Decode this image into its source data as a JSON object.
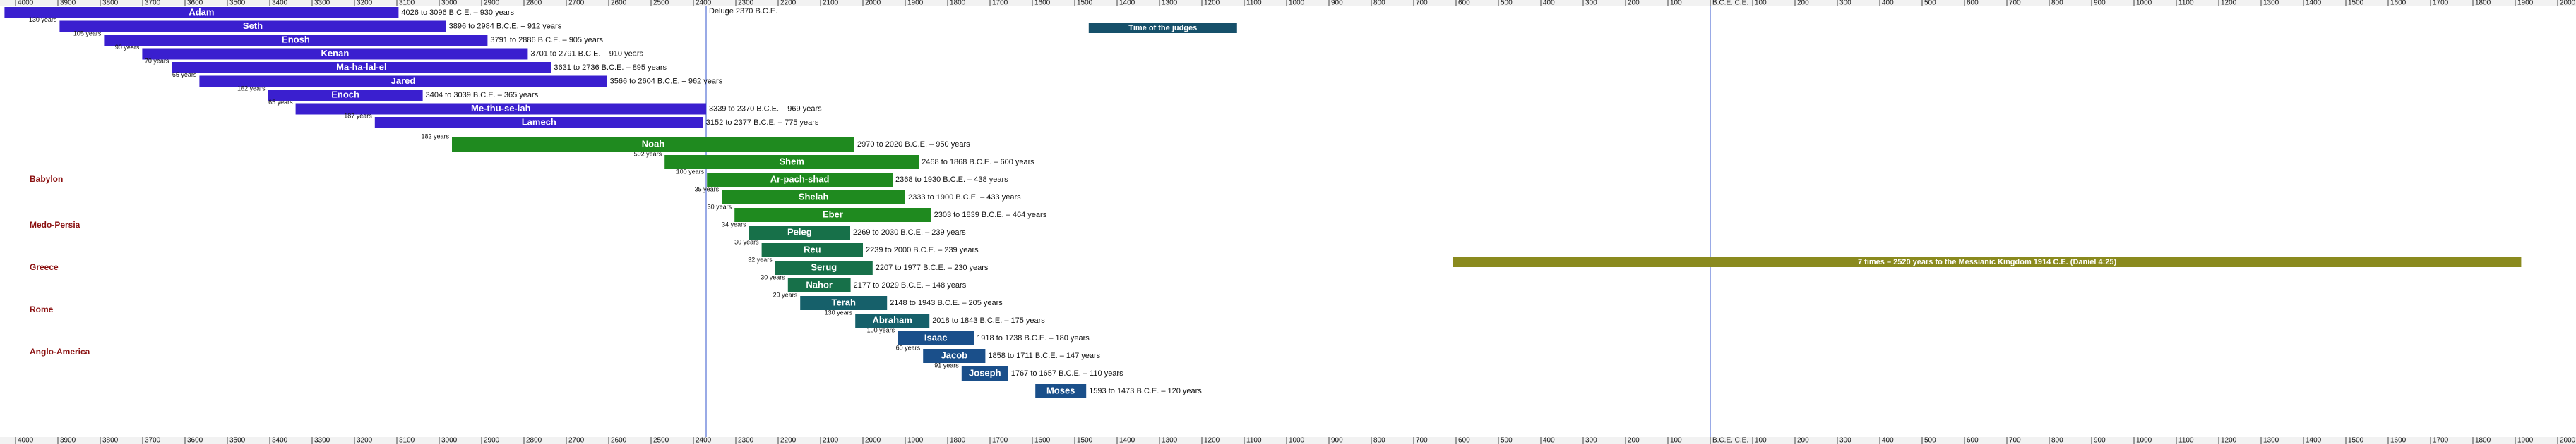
{
  "chart_data": {
    "type": "timeline",
    "xlim": [
      -4000,
      2000
    ],
    "xticks": [
      {
        "value": -4000,
        "label": "4000"
      },
      {
        "value": -3900,
        "label": "3900"
      },
      {
        "value": -3800,
        "label": "3800"
      },
      {
        "value": -3700,
        "label": "3700"
      },
      {
        "value": -3600,
        "label": "3600"
      },
      {
        "value": -3500,
        "label": "3500"
      },
      {
        "value": -3400,
        "label": "3400"
      },
      {
        "value": -3300,
        "label": "3300"
      },
      {
        "value": -3200,
        "label": "3200"
      },
      {
        "value": -3100,
        "label": "3100"
      },
      {
        "value": -3000,
        "label": "3000"
      },
      {
        "value": -2900,
        "label": "2900"
      },
      {
        "value": -2800,
        "label": "2800"
      },
      {
        "value": -2700,
        "label": "2700"
      },
      {
        "value": -2600,
        "label": "2600"
      },
      {
        "value": -2500,
        "label": "2500"
      },
      {
        "value": -2400,
        "label": "2400"
      },
      {
        "value": -2300,
        "label": "2300"
      },
      {
        "value": -2200,
        "label": "2200"
      },
      {
        "value": -2100,
        "label": "2100"
      },
      {
        "value": -2000,
        "label": "2000"
      },
      {
        "value": -1900,
        "label": "1900"
      },
      {
        "value": -1800,
        "label": "1800"
      },
      {
        "value": -1700,
        "label": "1700"
      },
      {
        "value": -1600,
        "label": "1600"
      },
      {
        "value": -1500,
        "label": "1500"
      },
      {
        "value": -1400,
        "label": "1400"
      },
      {
        "value": -1300,
        "label": "1300"
      },
      {
        "value": -1200,
        "label": "1200"
      },
      {
        "value": -1100,
        "label": "1100"
      },
      {
        "value": -1000,
        "label": "1000"
      },
      {
        "value": -900,
        "label": "900"
      },
      {
        "value": -800,
        "label": "800"
      },
      {
        "value": -700,
        "label": "700"
      },
      {
        "value": -600,
        "label": "600"
      },
      {
        "value": -500,
        "label": "500"
      },
      {
        "value": -400,
        "label": "400"
      },
      {
        "value": -300,
        "label": "300"
      },
      {
        "value": -200,
        "label": "200"
      },
      {
        "value": -100,
        "label": "100"
      },
      {
        "value": 0,
        "label": "B.C.E. C.E."
      },
      100,
      200,
      300,
      400,
      500,
      600,
      700,
      800,
      900,
      1000,
      1100,
      1200,
      1300,
      1400,
      1500,
      1600,
      1700,
      1800,
      1900,
      2000
    ],
    "people": [
      {
        "name": "Adam",
        "start": -4026,
        "end": -3096,
        "label": "4026 to 3096 B.C.E. – 930 years",
        "color": "#3a1fcf"
      },
      {
        "name": "Seth",
        "start": -3896,
        "end": -2984,
        "label": "3896 to 2984 B.C.E. – 912 years",
        "age": "130 years",
        "color": "#3a1fcf"
      },
      {
        "name": "Enosh",
        "start": -3791,
        "end": -2886,
        "label": "3791 to 2886 B.C.E. – 905 years",
        "age": "105 years",
        "color": "#3a1fcf"
      },
      {
        "name": "Kenan",
        "start": -3701,
        "end": -2791,
        "label": "3701 to 2791 B.C.E. – 910 years",
        "age": "90 years",
        "color": "#3a1fcf"
      },
      {
        "name": "Ma-ha-lal-el",
        "start": -3631,
        "end": -2736,
        "label": "3631 to 2736 B.C.E. – 895 years",
        "age": "70 years",
        "color": "#3a1fcf"
      },
      {
        "name": "Jared",
        "start": -3566,
        "end": -2604,
        "label": "3566 to 2604 B.C.E. – 962 years",
        "age": "65 years",
        "color": "#3a1fcf"
      },
      {
        "name": "Enoch",
        "start": -3404,
        "end": -3039,
        "label": "3404 to 3039 B.C.E. – 365 years",
        "age": "162 years",
        "color": "#3a1fcf"
      },
      {
        "name": "Me-thu-se-lah",
        "start": -3339,
        "end": -2370,
        "label": "3339 to 2370 B.C.E. – 969 years",
        "age": "65 years",
        "color": "#3a1fcf"
      },
      {
        "name": "Lamech",
        "start": -3152,
        "end": -2377,
        "label": "3152 to 2377 B.C.E. – 775 years",
        "age": "187 years",
        "color": "#3a1fcf"
      },
      {
        "name": "Noah",
        "start": -2970,
        "end": -2020,
        "label": "2970 to 2020 B.C.E. – 950 years",
        "age": "182 years",
        "color": "#1f8a1f"
      },
      {
        "name": "Shem",
        "start": -2468,
        "end": -1868,
        "label": "2468 to 1868 B.C.E. – 600 years",
        "age": "502 years",
        "color": "#1f8a1f"
      },
      {
        "name": "Ar-pach-shad",
        "start": -2368,
        "end": -1930,
        "label": "2368 to 1930 B.C.E. – 438 years",
        "age": "100 years",
        "color": "#1f8a1f"
      },
      {
        "name": "Shelah",
        "start": -2333,
        "end": -1900,
        "label": "2333 to 1900 B.C.E. – 433 years",
        "age": "35 years",
        "color": "#1f8a1f"
      },
      {
        "name": "Eber",
        "start": -2303,
        "end": -1839,
        "label": "2303 to 1839 B.C.E. – 464 years",
        "age": "30 years",
        "color": "#1f8a1f"
      },
      {
        "name": "Peleg",
        "start": -2269,
        "end": -2030,
        "label": "2269 to 2030 B.C.E. – 239 years",
        "age": "34 years",
        "color": "#177049"
      },
      {
        "name": "Reu",
        "start": -2239,
        "end": -2000,
        "label": "2239 to 2000 B.C.E. – 239 years",
        "age": "30 years",
        "color": "#177049"
      },
      {
        "name": "Serug",
        "start": -2207,
        "end": -1977,
        "label": "2207 to 1977 B.C.E. – 230 years",
        "age": "32 years",
        "color": "#177049"
      },
      {
        "name": "Nahor",
        "start": -2177,
        "end": -2029,
        "label": "2177 to 2029 B.C.E. – 148 years",
        "age": "30 years",
        "color": "#177049"
      },
      {
        "name": "Terah",
        "start": -2148,
        "end": -1943,
        "label": "2148 to 1943 B.C.E. – 205 years",
        "age": "29 years",
        "color": "#16606a"
      },
      {
        "name": "Abraham",
        "start": -2018,
        "end": -1843,
        "label": "2018 to 1843 B.C.E. – 175 years",
        "age": "130 years",
        "color": "#16606a"
      },
      {
        "name": "Isaac",
        "start": -1918,
        "end": -1738,
        "label": "1918 to 1738 B.C.E. – 180 years",
        "age": "100 years",
        "color": "#1a4f8a"
      },
      {
        "name": "Jacob",
        "start": -1858,
        "end": -1711,
        "label": "1858 to 1711 B.C.E. – 147 years",
        "age": "60 years",
        "color": "#1a4f8a"
      },
      {
        "name": "Joseph",
        "start": -1767,
        "end": -1657,
        "label": "1767 to 1657 B.C.E. – 110 years",
        "age": "91 years",
        "color": "#1a4f8a"
      },
      {
        "name": "Moses",
        "start": -1593,
        "end": -1473,
        "label": "1593 to 1473 B.C.E. – 120 years",
        "color": "#1a4f8a"
      }
    ],
    "events": [
      {
        "name": "Time of the judges",
        "start": -1467,
        "end": -1117,
        "color": "#16506a"
      },
      {
        "name": "7 times – 2520 years to the Messianic Kingdom 1914 C.E. (Daniel 4:25)",
        "start": -607,
        "end": 1914,
        "color": "#8a8a1e"
      }
    ],
    "deluge": {
      "label": "Deluge 2370 B.C.E.",
      "year": -2370
    },
    "world_powers": [
      "Babylon",
      "Medo-Persia",
      "Greece",
      "Rome",
      "Anglo-America"
    ]
  }
}
